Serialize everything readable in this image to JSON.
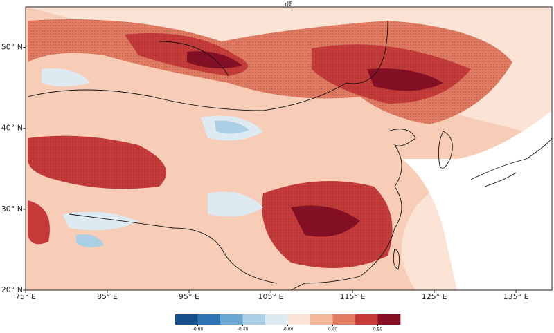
{
  "title": "r图",
  "map": {
    "xlim": [
      75,
      139.4
    ],
    "ylim": [
      20,
      55
    ],
    "xticks": [
      {
        "value": 75,
        "label": "75° E"
      },
      {
        "value": 85,
        "label": "85° E"
      },
      {
        "value": 95,
        "label": "95° E"
      },
      {
        "value": 105,
        "label": "105° E"
      },
      {
        "value": 115,
        "label": "115° E"
      },
      {
        "value": 125,
        "label": "125° E"
      },
      {
        "value": 135,
        "label": "135° E"
      }
    ],
    "yticks": [
      {
        "value": 20,
        "label": "20° N"
      },
      {
        "value": 30,
        "label": "30° N"
      },
      {
        "value": 40,
        "label": "40° N"
      },
      {
        "value": 50,
        "label": "50° N"
      }
    ]
  },
  "colorbar": {
    "lim": [
      -1,
      1
    ],
    "colors": [
      "#154f8c",
      "#2d74b3",
      "#6aa7d2",
      "#a9d0e5",
      "#deeaf2",
      "#fbe3d6",
      "#f5b79c",
      "#e27b62",
      "#c63b3a",
      "#870f25"
    ],
    "ticks": [
      {
        "value": -0.8,
        "label": "-0.80"
      },
      {
        "value": -0.4,
        "label": "-0.40"
      },
      {
        "value": 0,
        "label": "-0.00"
      },
      {
        "value": 0.4,
        "label": "0.40"
      },
      {
        "value": 0.8,
        "label": "0.80"
      }
    ]
  }
}
